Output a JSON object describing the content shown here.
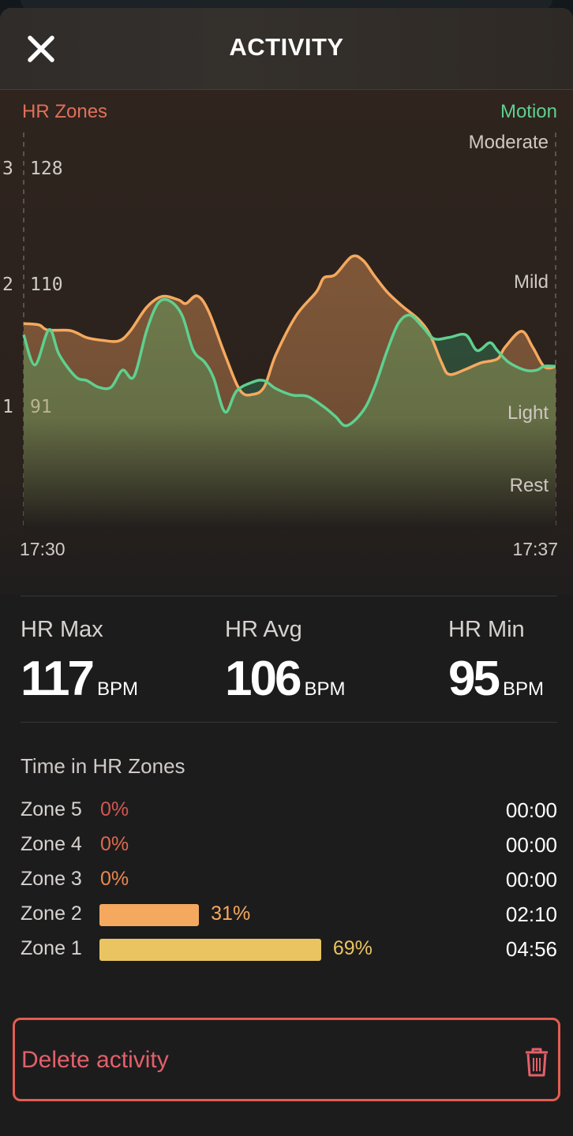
{
  "header": {
    "title": "ACTIVITY",
    "close_icon": "close-icon"
  },
  "chart": {
    "left_label": "HR Zones",
    "right_label": "Motion",
    "zone_ticks": [
      "3",
      "2",
      "1"
    ],
    "bpm_ticks": [
      "128",
      "110",
      "91"
    ],
    "motion_levels": [
      "Moderate",
      "Mild",
      "Light",
      "Rest"
    ],
    "x_start": "17:30",
    "x_end": "17:37",
    "colors": {
      "hr": "#f5a95e",
      "motion": "#5fd08f",
      "hr_zones_label": "#e0705a"
    }
  },
  "chart_data": {
    "type": "area",
    "xlim": [
      "17:30",
      "17:37"
    ],
    "ylabel_left": "HR Zones",
    "ylabel_right": "Motion",
    "y_left_ticks": [
      128,
      110,
      91
    ],
    "y_right_ticks": [
      "Rest",
      "Light",
      "Mild",
      "Moderate"
    ],
    "grid": false,
    "series": [
      {
        "name": "HR Zones",
        "unit": "BPM",
        "points": [
          [
            "17:30:00",
            104.1
          ],
          [
            "17:30:12",
            103.9
          ],
          [
            "17:30:19",
            103.1
          ],
          [
            "17:30:37",
            103.0
          ],
          [
            "17:30:50",
            101.9
          ],
          [
            "17:31:02",
            101.5
          ],
          [
            "17:31:15",
            101.4
          ],
          [
            "17:31:24",
            102.9
          ],
          [
            "17:31:37",
            106.6
          ],
          [
            "17:31:49",
            108.3
          ],
          [
            "17:32:02",
            107.8
          ],
          [
            "17:32:08",
            107.2
          ],
          [
            "17:32:17",
            108.4
          ],
          [
            "17:32:26",
            106.0
          ],
          [
            "17:32:39",
            99.2
          ],
          [
            "17:32:51",
            93.7
          ],
          [
            "17:33:01",
            93.1
          ],
          [
            "17:33:10",
            94.3
          ],
          [
            "17:33:19",
            99.2
          ],
          [
            "17:33:35",
            105.3
          ],
          [
            "17:33:51",
            109.0
          ],
          [
            "17:33:57",
            111.2
          ],
          [
            "17:34:06",
            111.7
          ],
          [
            "17:34:19",
            114.5
          ],
          [
            "17:34:28",
            113.9
          ],
          [
            "17:34:37",
            111.5
          ],
          [
            "17:34:47",
            109.0
          ],
          [
            "17:34:59",
            106.8
          ],
          [
            "17:35:12",
            104.7
          ],
          [
            "17:35:21",
            102.3
          ],
          [
            "17:35:30",
            98.0
          ],
          [
            "17:35:36",
            96.2
          ],
          [
            "17:35:49",
            97.0
          ],
          [
            "17:36:01",
            98.0
          ],
          [
            "17:36:14",
            98.6
          ],
          [
            "17:36:20",
            100.4
          ],
          [
            "17:36:33",
            102.9
          ],
          [
            "17:36:42",
            100.4
          ],
          [
            "17:36:51",
            97.4
          ],
          [
            "17:37:00",
            97.4
          ]
        ]
      },
      {
        "name": "Motion",
        "unit": "level (0=Rest,1=Light,2=Mild,3=Moderate)",
        "points": [
          [
            "17:30:00",
            1.6
          ],
          [
            "17:30:09",
            1.37
          ],
          [
            "17:30:20",
            1.64
          ],
          [
            "17:30:28",
            1.45
          ],
          [
            "17:30:41",
            1.28
          ],
          [
            "17:30:50",
            1.25
          ],
          [
            "17:30:59",
            1.2
          ],
          [
            "17:31:09",
            1.2
          ],
          [
            "17:31:18",
            1.33
          ],
          [
            "17:31:27",
            1.28
          ],
          [
            "17:31:37",
            1.63
          ],
          [
            "17:31:46",
            1.84
          ],
          [
            "17:31:55",
            1.86
          ],
          [
            "17:32:05",
            1.75
          ],
          [
            "17:32:14",
            1.48
          ],
          [
            "17:32:23",
            1.39
          ],
          [
            "17:32:30",
            1.27
          ],
          [
            "17:32:39",
            1.01
          ],
          [
            "17:32:48",
            1.17
          ],
          [
            "17:33:01",
            1.24
          ],
          [
            "17:33:10",
            1.25
          ],
          [
            "17:33:19",
            1.19
          ],
          [
            "17:33:32",
            1.14
          ],
          [
            "17:33:44",
            1.13
          ],
          [
            "17:33:57",
            1.05
          ],
          [
            "17:34:06",
            0.96
          ],
          [
            "17:34:15",
            0.83
          ],
          [
            "17:34:28",
            1.02
          ],
          [
            "17:34:37",
            1.2
          ],
          [
            "17:34:47",
            1.48
          ],
          [
            "17:34:56",
            1.69
          ],
          [
            "17:35:05",
            1.75
          ],
          [
            "17:35:15",
            1.66
          ],
          [
            "17:35:24",
            1.57
          ],
          [
            "17:35:36",
            1.58
          ],
          [
            "17:35:49",
            1.6
          ],
          [
            "17:35:58",
            1.48
          ],
          [
            "17:36:08",
            1.54
          ],
          [
            "17:36:14",
            1.48
          ],
          [
            "17:36:23",
            1.39
          ],
          [
            "17:36:36",
            1.33
          ],
          [
            "17:36:45",
            1.33
          ],
          [
            "17:36:51",
            1.36
          ],
          [
            "17:37:00",
            1.36
          ]
        ]
      }
    ]
  },
  "stats": [
    {
      "label": "HR Max",
      "value": "117",
      "unit": "BPM"
    },
    {
      "label": "HR Avg",
      "value": "106",
      "unit": "BPM"
    },
    {
      "label": "HR Min",
      "value": "95",
      "unit": "BPM"
    }
  ],
  "zones": {
    "title": "Time in HR Zones",
    "items": [
      {
        "name": "Zone 5",
        "percent": 0,
        "percent_label": "0%",
        "time": "00:00",
        "color": "#d2574f"
      },
      {
        "name": "Zone 4",
        "percent": 0,
        "percent_label": "0%",
        "time": "00:00",
        "color": "#dc6a4e"
      },
      {
        "name": "Zone 3",
        "percent": 0,
        "percent_label": "0%",
        "time": "00:00",
        "color": "#e8894f"
      },
      {
        "name": "Zone 2",
        "percent": 31,
        "percent_label": "31%",
        "time": "02:10",
        "color": "#f5a95e"
      },
      {
        "name": "Zone 1",
        "percent": 69,
        "percent_label": "69%",
        "time": "04:56",
        "color": "#e9c460"
      }
    ]
  },
  "delete": {
    "label": "Delete activity",
    "icon": "trash-icon",
    "color": "#e35d4f"
  }
}
